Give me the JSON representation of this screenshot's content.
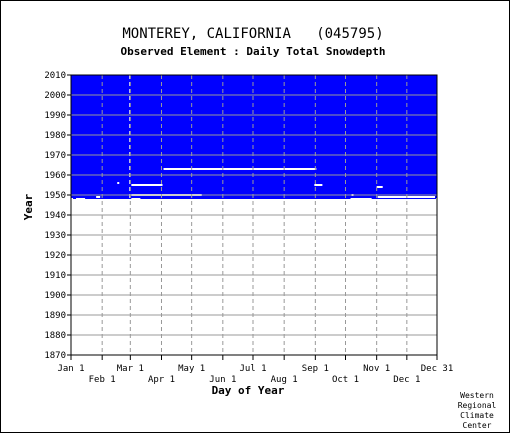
{
  "chart_data": {
    "type": "heatmap",
    "title": "MONTEREY, CALIFORNIA   (045795)",
    "subtitle": "Observed Element : Daily Total Snowdepth",
    "xlabel": "Day of Year",
    "ylabel": "Year",
    "x_ticks_upper": [
      {
        "label": "Jan 1",
        "day": 1
      },
      {
        "label": "Mar 1",
        "day": 60
      },
      {
        "label": "May 1",
        "day": 121
      },
      {
        "label": "Jul 1",
        "day": 182
      },
      {
        "label": "Sep 1",
        "day": 244
      },
      {
        "label": "Nov 1",
        "day": 305
      },
      {
        "label": "Dec 31",
        "day": 365
      }
    ],
    "x_ticks_lower": [
      {
        "label": "Feb 1",
        "day": 32
      },
      {
        "label": "Apr 1",
        "day": 91
      },
      {
        "label": "Jun 1",
        "day": 152
      },
      {
        "label": "Aug 1",
        "day": 213
      },
      {
        "label": "Oct 1",
        "day": 274
      },
      {
        "label": "Dec 1",
        "day": 335
      }
    ],
    "y_ticks": [
      "1870",
      "1880",
      "1890",
      "1900",
      "1910",
      "1920",
      "1930",
      "1940",
      "1950",
      "1960",
      "1970",
      "1980",
      "1990",
      "2000",
      "2010"
    ],
    "xlim": [
      1,
      365
    ],
    "ylim": [
      1870,
      2010
    ],
    "data_coverage": {
      "start_year": 1948,
      "end_year": 2010,
      "color": "#0000ff"
    },
    "missing_segments": [
      {
        "year": 1948,
        "start_day": 1,
        "end_day": 3
      },
      {
        "year": 1948,
        "start_day": 6,
        "end_day": 15
      },
      {
        "year": 1948,
        "start_day": 61,
        "end_day": 70
      },
      {
        "year": 1948,
        "start_day": 279,
        "end_day": 300
      },
      {
        "year": 1948,
        "start_day": 364,
        "end_day": 365
      },
      {
        "year": 1949,
        "start_day": 26,
        "end_day": 30
      },
      {
        "year": 1949,
        "start_day": 306,
        "end_day": 363
      },
      {
        "year": 1950,
        "start_day": 61,
        "end_day": 131
      },
      {
        "year": 1950,
        "start_day": 280,
        "end_day": 281
      },
      {
        "year": 1954,
        "start_day": 305,
        "end_day": 311
      },
      {
        "year": 1955,
        "start_day": 61,
        "end_day": 92
      },
      {
        "year": 1955,
        "start_day": 243,
        "end_day": 251
      },
      {
        "year": 1956,
        "start_day": 47,
        "end_day": 48
      },
      {
        "year": 1963,
        "start_day": 93,
        "end_day": 245
      }
    ],
    "missing_color": "#ffffff",
    "missing_day_column": {
      "day": 59,
      "year_range": [
        1948,
        2010
      ]
    },
    "grid": true,
    "legend": "none",
    "colors": {
      "data": "#0000ff",
      "grid": "#999999",
      "axes": "#000000"
    }
  },
  "credit": [
    "Western",
    "Regional",
    "Climate",
    "Center"
  ]
}
